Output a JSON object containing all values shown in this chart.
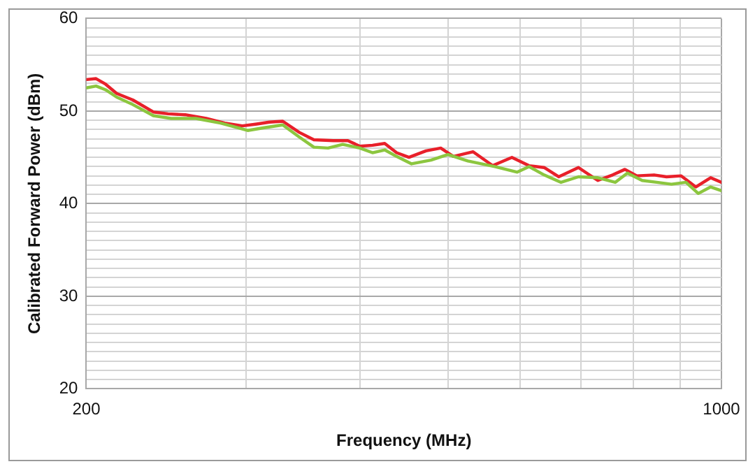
{
  "chart_data": {
    "type": "line",
    "xlabel": "Frequency (MHz)",
    "ylabel": "Calibrated Forward Power (dBm)",
    "log": "x",
    "grid": true,
    "marker": "none",
    "line_style": "solid",
    "xlim": [
      200,
      1000
    ],
    "xticks": [
      200,
      {
        "value": 300,
        "label": null
      },
      {
        "value": 400,
        "label": null
      },
      {
        "value": 500,
        "label": null
      },
      {
        "value": 600,
        "label": null
      },
      {
        "value": 700,
        "label": null
      },
      {
        "value": 800,
        "label": null
      },
      {
        "value": 900,
        "label": null
      },
      1000
    ],
    "ylim": [
      20,
      60
    ],
    "yticks": [
      20,
      {
        "value": 21,
        "label": null
      },
      {
        "value": 22,
        "label": null
      },
      {
        "value": 23,
        "label": null
      },
      {
        "value": 24,
        "label": null
      },
      {
        "value": 25,
        "label": null
      },
      {
        "value": 26,
        "label": null
      },
      {
        "value": 27,
        "label": null
      },
      {
        "value": 28,
        "label": null
      },
      {
        "value": 29,
        "label": null
      },
      30,
      {
        "value": 31,
        "label": null
      },
      {
        "value": 32,
        "label": null
      },
      {
        "value": 33,
        "label": null
      },
      {
        "value": 34,
        "label": null
      },
      {
        "value": 35,
        "label": null
      },
      {
        "value": 36,
        "label": null
      },
      {
        "value": 37,
        "label": null
      },
      {
        "value": 38,
        "label": null
      },
      {
        "value": 39,
        "label": null
      },
      40,
      {
        "value": 41,
        "label": null
      },
      {
        "value": 42,
        "label": null
      },
      {
        "value": 43,
        "label": null
      },
      {
        "value": 44,
        "label": null
      },
      {
        "value": 45,
        "label": null
      },
      {
        "value": 46,
        "label": null
      },
      {
        "value": 47,
        "label": null
      },
      {
        "value": 48,
        "label": null
      },
      {
        "value": 49,
        "label": null
      },
      50,
      {
        "value": 51,
        "label": null
      },
      {
        "value": 52,
        "label": null
      },
      {
        "value": 53,
        "label": null
      },
      {
        "value": 54,
        "label": null
      },
      {
        "value": 55,
        "label": null
      },
      {
        "value": 56,
        "label": null
      },
      {
        "value": 57,
        "label": null
      },
      {
        "value": 58,
        "label": null
      },
      {
        "value": 59,
        "label": null
      },
      60
    ],
    "legend": false,
    "series": [
      {
        "color": "#8cc63f",
        "x": [
          200,
          205,
          210,
          216,
          225,
          237,
          248,
          264,
          281,
          301,
          314,
          329,
          343,
          356,
          369,
          383,
          400,
          413,
          426,
          439,
          456,
          479,
          500,
          526,
          563,
          596,
          614,
          638,
          666,
          696,
          731,
          764,
          788,
          818,
          849,
          881,
          914,
          943,
          973,
          1000
        ],
        "values": [
          52.5,
          52.7,
          52.3,
          51.5,
          50.7,
          49.5,
          49.2,
          49.2,
          48.7,
          47.9,
          48.2,
          48.5,
          47.2,
          46.1,
          46.0,
          46.4,
          46.0,
          45.5,
          45.8,
          45.1,
          44.3,
          44.7,
          45.3,
          44.6,
          44.0,
          43.4,
          44.0,
          43.1,
          42.3,
          42.9,
          42.8,
          42.3,
          43.3,
          42.5,
          42.3,
          42.1,
          42.3,
          41.1,
          41.8,
          41.4
        ]
      },
      {
        "color": "#e8202a",
        "x": [
          200,
          205,
          210,
          216,
          225,
          237,
          246,
          257,
          271,
          284,
          297,
          308,
          318,
          329,
          343,
          356,
          374,
          388,
          400,
          413,
          426,
          439,
          453,
          473,
          491,
          507,
          533,
          560,
          588,
          614,
          638,
          662,
          696,
          731,
          759,
          783,
          807,
          843,
          870,
          903,
          937,
          973,
          1000
        ],
        "values": [
          53.4,
          53.5,
          52.9,
          51.9,
          51.2,
          49.9,
          49.7,
          49.6,
          49.2,
          48.7,
          48.4,
          48.6,
          48.8,
          48.9,
          47.7,
          46.9,
          46.8,
          46.8,
          46.2,
          46.3,
          46.5,
          45.5,
          45.0,
          45.7,
          46.0,
          45.1,
          45.6,
          44.1,
          45.0,
          44.1,
          43.9,
          42.9,
          43.9,
          42.5,
          43.1,
          43.7,
          43.0,
          43.1,
          42.9,
          43.0,
          41.8,
          42.8,
          42.3
        ]
      }
    ]
  }
}
